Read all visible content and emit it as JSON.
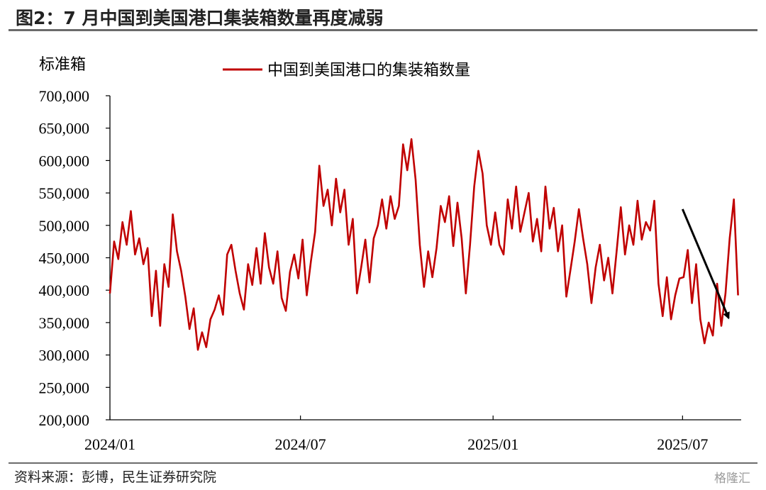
{
  "header": {
    "title": "图2：7 月中国到美国港口集装箱数量再度减弱"
  },
  "footer": {
    "source": "资料来源：彭博，民生证券研究院",
    "watermark": "格隆汇"
  },
  "colors": {
    "series": "#c00000",
    "axis": "#000000",
    "arrow": "#000000",
    "rule": "#6b6b6b"
  },
  "chart_data": {
    "type": "line",
    "ylabel": "标准箱",
    "ylim": [
      200000,
      700000
    ],
    "yticks": [
      200000,
      250000,
      300000,
      350000,
      400000,
      450000,
      500000,
      550000,
      600000,
      650000,
      700000
    ],
    "ytick_labels": [
      "200,000",
      "250,000",
      "300,000",
      "350,000",
      "400,000",
      "450,000",
      "500,000",
      "550,000",
      "600,000",
      "650,000",
      "700,000"
    ],
    "xticks": [
      "2024-01",
      "2024-07",
      "2025-01",
      "2025-07"
    ],
    "xtick_labels": [
      "2024/01",
      "2024/07",
      "2025/01",
      "2025/07"
    ],
    "xlim": [
      "2024-01-01",
      "2025-08-26"
    ],
    "legend": "top-center",
    "grid": false,
    "annotation": {
      "type": "arrow",
      "from": [
        "2025-07-01",
        525000
      ],
      "to": [
        "2025-08-14",
        357000
      ]
    },
    "series": [
      {
        "name": "中国到美国港口的集装箱数量",
        "color": "#c00000",
        "points": [
          [
            "2024-01-01",
            395000
          ],
          [
            "2024-01-05",
            475000
          ],
          [
            "2024-01-09",
            448000
          ],
          [
            "2024-01-13",
            505000
          ],
          [
            "2024-01-17",
            470000
          ],
          [
            "2024-01-21",
            522000
          ],
          [
            "2024-01-25",
            455000
          ],
          [
            "2024-01-29",
            480000
          ],
          [
            "2024-02-02",
            440000
          ],
          [
            "2024-02-06",
            465000
          ],
          [
            "2024-02-10",
            360000
          ],
          [
            "2024-02-14",
            430000
          ],
          [
            "2024-02-18",
            345000
          ],
          [
            "2024-02-22",
            440000
          ],
          [
            "2024-02-26",
            405000
          ],
          [
            "2024-03-01",
            517000
          ],
          [
            "2024-03-05",
            460000
          ],
          [
            "2024-03-09",
            430000
          ],
          [
            "2024-03-13",
            390000
          ],
          [
            "2024-03-17",
            340000
          ],
          [
            "2024-03-21",
            372000
          ],
          [
            "2024-03-25",
            308000
          ],
          [
            "2024-03-29",
            335000
          ],
          [
            "2024-04-02",
            312000
          ],
          [
            "2024-04-06",
            355000
          ],
          [
            "2024-04-10",
            370000
          ],
          [
            "2024-04-14",
            392000
          ],
          [
            "2024-04-18",
            362000
          ],
          [
            "2024-04-22",
            455000
          ],
          [
            "2024-04-26",
            470000
          ],
          [
            "2024-04-30",
            430000
          ],
          [
            "2024-05-04",
            395000
          ],
          [
            "2024-05-08",
            370000
          ],
          [
            "2024-05-12",
            440000
          ],
          [
            "2024-05-16",
            408000
          ],
          [
            "2024-05-20",
            465000
          ],
          [
            "2024-05-24",
            410000
          ],
          [
            "2024-05-28",
            488000
          ],
          [
            "2024-06-01",
            435000
          ],
          [
            "2024-06-05",
            410000
          ],
          [
            "2024-06-09",
            460000
          ],
          [
            "2024-06-13",
            388000
          ],
          [
            "2024-06-17",
            368000
          ],
          [
            "2024-06-21",
            428000
          ],
          [
            "2024-06-25",
            455000
          ],
          [
            "2024-06-29",
            418000
          ],
          [
            "2024-07-03",
            478000
          ],
          [
            "2024-07-07",
            392000
          ],
          [
            "2024-07-11",
            445000
          ],
          [
            "2024-07-15",
            490000
          ],
          [
            "2024-07-19",
            592000
          ],
          [
            "2024-07-23",
            530000
          ],
          [
            "2024-07-27",
            555000
          ],
          [
            "2024-07-31",
            500000
          ],
          [
            "2024-08-04",
            572000
          ],
          [
            "2024-08-08",
            520000
          ],
          [
            "2024-08-12",
            555000
          ],
          [
            "2024-08-16",
            470000
          ],
          [
            "2024-08-20",
            510000
          ],
          [
            "2024-08-24",
            395000
          ],
          [
            "2024-08-28",
            435000
          ],
          [
            "2024-09-01",
            478000
          ],
          [
            "2024-09-05",
            412000
          ],
          [
            "2024-09-09",
            480000
          ],
          [
            "2024-09-13",
            500000
          ],
          [
            "2024-09-17",
            540000
          ],
          [
            "2024-09-21",
            495000
          ],
          [
            "2024-09-25",
            545000
          ],
          [
            "2024-09-29",
            510000
          ],
          [
            "2024-10-03",
            530000
          ],
          [
            "2024-10-07",
            625000
          ],
          [
            "2024-10-11",
            585000
          ],
          [
            "2024-10-15",
            633000
          ],
          [
            "2024-10-19",
            570000
          ],
          [
            "2024-10-23",
            470000
          ],
          [
            "2024-10-27",
            405000
          ],
          [
            "2024-10-31",
            460000
          ],
          [
            "2024-11-04",
            420000
          ],
          [
            "2024-11-08",
            465000
          ],
          [
            "2024-11-12",
            530000
          ],
          [
            "2024-11-16",
            505000
          ],
          [
            "2024-11-20",
            545000
          ],
          [
            "2024-11-24",
            468000
          ],
          [
            "2024-11-28",
            535000
          ],
          [
            "2024-12-02",
            480000
          ],
          [
            "2024-12-06",
            395000
          ],
          [
            "2024-12-10",
            470000
          ],
          [
            "2024-12-14",
            560000
          ],
          [
            "2024-12-18",
            615000
          ],
          [
            "2024-12-22",
            580000
          ],
          [
            "2024-12-26",
            500000
          ],
          [
            "2024-12-30",
            470000
          ],
          [
            "2025-01-03",
            520000
          ],
          [
            "2025-01-07",
            470000
          ],
          [
            "2025-01-11",
            455000
          ],
          [
            "2025-01-15",
            540000
          ],
          [
            "2025-01-19",
            495000
          ],
          [
            "2025-01-23",
            560000
          ],
          [
            "2025-01-27",
            490000
          ],
          [
            "2025-01-31",
            520000
          ],
          [
            "2025-02-04",
            550000
          ],
          [
            "2025-02-08",
            475000
          ],
          [
            "2025-02-12",
            510000
          ],
          [
            "2025-02-16",
            460000
          ],
          [
            "2025-02-20",
            560000
          ],
          [
            "2025-02-24",
            495000
          ],
          [
            "2025-02-28",
            527000
          ],
          [
            "2025-03-04",
            460000
          ],
          [
            "2025-03-08",
            500000
          ],
          [
            "2025-03-12",
            390000
          ],
          [
            "2025-03-16",
            432000
          ],
          [
            "2025-03-20",
            475000
          ],
          [
            "2025-03-24",
            525000
          ],
          [
            "2025-03-28",
            480000
          ],
          [
            "2025-04-01",
            440000
          ],
          [
            "2025-04-05",
            380000
          ],
          [
            "2025-04-09",
            435000
          ],
          [
            "2025-04-13",
            470000
          ],
          [
            "2025-04-17",
            415000
          ],
          [
            "2025-04-21",
            450000
          ],
          [
            "2025-04-25",
            395000
          ],
          [
            "2025-04-29",
            460000
          ],
          [
            "2025-05-03",
            528000
          ],
          [
            "2025-05-07",
            455000
          ],
          [
            "2025-05-11",
            500000
          ],
          [
            "2025-05-15",
            470000
          ],
          [
            "2025-05-19",
            538000
          ],
          [
            "2025-05-23",
            478000
          ],
          [
            "2025-05-27",
            505000
          ],
          [
            "2025-05-31",
            492000
          ],
          [
            "2025-06-04",
            538000
          ],
          [
            "2025-06-08",
            410000
          ],
          [
            "2025-06-12",
            360000
          ],
          [
            "2025-06-16",
            420000
          ],
          [
            "2025-06-20",
            355000
          ],
          [
            "2025-06-24",
            392000
          ],
          [
            "2025-06-28",
            418000
          ],
          [
            "2025-07-02",
            420000
          ],
          [
            "2025-07-06",
            462000
          ],
          [
            "2025-07-10",
            380000
          ],
          [
            "2025-07-14",
            440000
          ],
          [
            "2025-07-18",
            355000
          ],
          [
            "2025-07-22",
            318000
          ],
          [
            "2025-07-26",
            350000
          ],
          [
            "2025-07-30",
            330000
          ],
          [
            "2025-08-03",
            410000
          ],
          [
            "2025-08-07",
            345000
          ],
          [
            "2025-08-11",
            395000
          ],
          [
            "2025-08-15",
            480000
          ],
          [
            "2025-08-19",
            540000
          ],
          [
            "2025-08-23",
            392000
          ]
        ]
      }
    ]
  }
}
